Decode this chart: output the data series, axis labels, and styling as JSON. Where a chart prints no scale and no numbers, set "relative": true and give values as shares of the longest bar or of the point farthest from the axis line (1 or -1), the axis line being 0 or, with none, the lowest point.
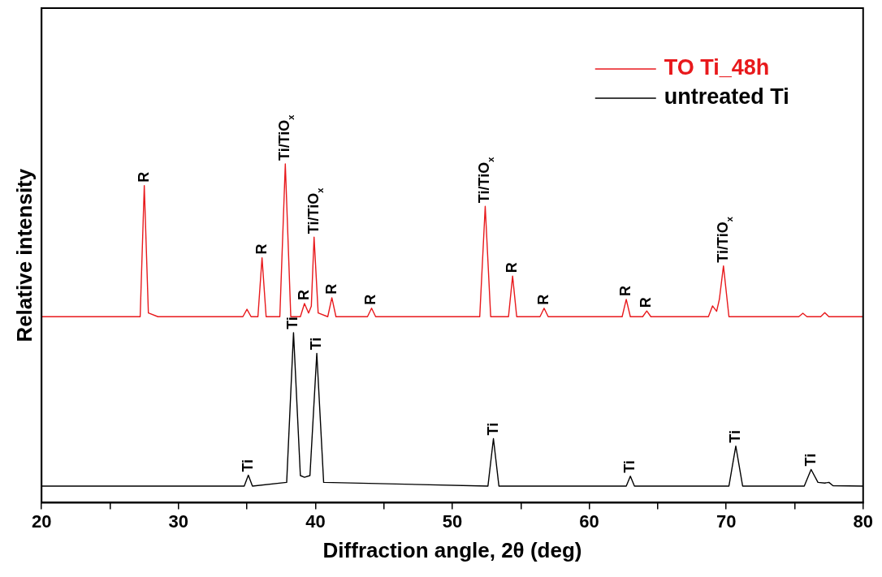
{
  "chart_data": {
    "type": "line",
    "relative": true,
    "xlabel": "Diffraction angle, 2θ (deg)",
    "ylabel": "Relative intensity",
    "xlim": [
      20,
      80
    ],
    "xticks": [
      20,
      {
        "value": 25,
        "label": null
      },
      30,
      {
        "value": 35,
        "label": null
      },
      40,
      {
        "value": 45,
        "label": null
      },
      50,
      {
        "value": 55,
        "label": null
      },
      60,
      {
        "value": 65,
        "label": null
      },
      70,
      {
        "value": 75,
        "label": null
      },
      80
    ],
    "legend": "top right",
    "marker": "none",
    "line_style": "solid",
    "series": [
      {
        "name": "TO Ti_48h",
        "color": "#e8191c",
        "x": [
          20,
          26.5,
          27.2,
          27.5,
          27.8,
          28.5,
          34.7,
          35.0,
          35.3,
          35.8,
          36.1,
          36.4,
          37.4,
          37.8,
          38.2,
          38.9,
          39.2,
          39.5,
          39.7,
          39.9,
          40.2,
          40.9,
          41.2,
          41.5,
          43.8,
          44.1,
          44.4,
          52.0,
          52.4,
          52.8,
          54.1,
          54.4,
          54.7,
          56.4,
          56.7,
          57.0,
          62.4,
          62.7,
          63.0,
          63.9,
          64.2,
          64.5,
          68.7,
          69.0,
          69.3,
          69.5,
          69.8,
          70.2,
          75.3,
          75.6,
          75.9,
          76.9,
          77.2,
          77.5,
          80
        ],
        "values": [
          0.549,
          0.549,
          0.549,
          0.936,
          0.56,
          0.549,
          0.549,
          0.571,
          0.549,
          0.549,
          0.723,
          0.549,
          0.549,
          1,
          0.549,
          0.549,
          0.588,
          0.56,
          0.58,
          0.784,
          0.56,
          0.549,
          0.605,
          0.549,
          0.549,
          0.574,
          0.549,
          0.549,
          0.875,
          0.549,
          0.549,
          0.669,
          0.549,
          0.549,
          0.574,
          0.549,
          0.549,
          0.6,
          0.549,
          0.549,
          0.566,
          0.549,
          0.549,
          0.581,
          0.565,
          0.6,
          0.699,
          0.549,
          0.549,
          0.559,
          0.549,
          0.549,
          0.561,
          0.549,
          0.549
        ]
      },
      {
        "name": "untreated Ti",
        "color": "#000000",
        "x": [
          20,
          34.8,
          35.1,
          35.4,
          37.9,
          38.4,
          38.9,
          39.2,
          39.6,
          40.1,
          40.6,
          52.6,
          53.0,
          53.4,
          62.7,
          63.0,
          63.3,
          70.2,
          70.7,
          71.2,
          75.7,
          76.2,
          76.7,
          77.2,
          77.5,
          77.8,
          80
        ],
        "values": [
          0.049,
          0.049,
          0.081,
          0.049,
          0.06,
          0.502,
          0.08,
          0.075,
          0.08,
          0.441,
          0.06,
          0.049,
          0.189,
          0.049,
          0.049,
          0.078,
          0.049,
          0.049,
          0.167,
          0.049,
          0.049,
          0.098,
          0.06,
          0.058,
          0.06,
          0.05,
          0.049
        ]
      }
    ],
    "annotations": [
      {
        "text": "R",
        "x": 27.5,
        "y": 0.936
      },
      {
        "text": "R",
        "x": 36.1,
        "y": 0.723
      },
      {
        "text": "Ti/TiO$_{x}$",
        "x": 37.8,
        "y": 1
      },
      {
        "text": "R",
        "x": 39.2,
        "y": 0.588
      },
      {
        "text": "Ti/TiO$_{x}$",
        "x": 39.9,
        "y": 0.784
      },
      {
        "text": "R",
        "x": 41.2,
        "y": 0.605
      },
      {
        "text": "R",
        "x": 44.1,
        "y": 0.574
      },
      {
        "text": "Ti/TiO$_{x}$",
        "x": 52.4,
        "y": 0.875
      },
      {
        "text": "R",
        "x": 54.4,
        "y": 0.669
      },
      {
        "text": "R",
        "x": 56.7,
        "y": 0.574
      },
      {
        "text": "R",
        "x": 62.7,
        "y": 0.6
      },
      {
        "text": "R",
        "x": 64.2,
        "y": 0.566
      },
      {
        "text": "Ti/TiO$_{x}$",
        "x": 69.8,
        "y": 0.699
      },
      {
        "text": "Ti",
        "x": 35.1,
        "y": 0.081
      },
      {
        "text": "Ti",
        "x": 38.4,
        "y": 0.502
      },
      {
        "text": "Ti",
        "x": 40.1,
        "y": 0.441
      },
      {
        "text": "Ti",
        "x": 53.0,
        "y": 0.189
      },
      {
        "text": "Ti",
        "x": 63.0,
        "y": 0.078
      },
      {
        "text": "Ti",
        "x": 70.7,
        "y": 0.167
      },
      {
        "text": "Ti",
        "x": 76.2,
        "y": 0.098
      }
    ]
  }
}
